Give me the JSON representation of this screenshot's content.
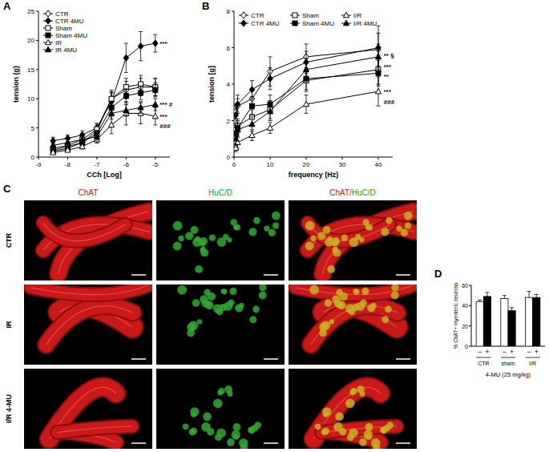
{
  "chart_data": [
    {
      "type": "line",
      "title": "A",
      "x_label": "CCh [Log]",
      "y_label": "tension (g)",
      "x": [
        -8.5,
        -8,
        -7.5,
        -7,
        -6.5,
        -6,
        -5.5,
        -5
      ],
      "xlim": [
        -9,
        -4.5
      ],
      "xticks": [
        -9,
        -8,
        -7,
        -6,
        -5
      ],
      "ylim": [
        0,
        25
      ],
      "yticks": [
        0,
        5,
        10,
        15,
        20,
        25
      ],
      "grid": false,
      "legend": "upper-left",
      "series": [
        {
          "name": "CTR",
          "color": "#000000",
          "marker": "diamond-open",
          "values": [
            1.2,
            1.8,
            2.5,
            4.5,
            10,
            11.5,
            12,
            12
          ],
          "errors": [
            0.3,
            0.4,
            0.5,
            0.8,
            1.5,
            1.5,
            1.5,
            1.5
          ]
        },
        {
          "name": "CTR 4MU",
          "color": "#000000",
          "marker": "diamond",
          "values": [
            2.8,
            3.2,
            3.8,
            5,
            9.5,
            17,
            19,
            19.5
          ],
          "errors": [
            0.6,
            0.6,
            0.7,
            0.8,
            1.5,
            2.5,
            2.5,
            1.5
          ]
        },
        {
          "name": "Sham",
          "color": "#000000",
          "marker": "square-open",
          "values": [
            1.5,
            2,
            3,
            4.8,
            10,
            12,
            12.5,
            12
          ],
          "errors": [
            0.4,
            0.5,
            0.6,
            0.8,
            1.2,
            1.5,
            1.5,
            1.5
          ]
        },
        {
          "name": "Sham 4MU",
          "color": "#000000",
          "marker": "square",
          "values": [
            1,
            1.5,
            2.5,
            4,
            8.5,
            10.5,
            11,
            11.5
          ],
          "errors": [
            0.3,
            0.4,
            0.5,
            0.6,
            1,
            1.2,
            1.2,
            1.2
          ]
        },
        {
          "name": "IR",
          "color": "#000000",
          "marker": "triangle-open",
          "values": [
            0.8,
            1.2,
            1.8,
            3,
            5.5,
            7.5,
            7.5,
            7
          ],
          "errors": [
            0.2,
            0.3,
            0.4,
            0.6,
            1.5,
            2,
            1.8,
            1.5
          ]
        },
        {
          "name": "IR 4MU",
          "color": "#000000",
          "marker": "triangle",
          "values": [
            2,
            2.5,
            3,
            3.5,
            7.5,
            8,
            8.5,
            9
          ],
          "errors": [
            0.4,
            0.5,
            0.5,
            0.6,
            1,
            1,
            1,
            1
          ]
        }
      ],
      "annotations": [
        {
          "text": "***",
          "x": -4.85,
          "y": 19.5
        },
        {
          "text": "*** #",
          "x": -4.85,
          "y": 9
        },
        {
          "text": "***",
          "x": -4.85,
          "y": 7
        },
        {
          "text": "###",
          "x": -4.85,
          "y": 5.3
        }
      ]
    },
    {
      "type": "line",
      "title": "B",
      "x_label": "frequency (Hz)",
      "y_label": "tension [g]",
      "x": [
        0.5,
        1,
        5,
        10,
        20,
        40
      ],
      "xlim": [
        0,
        44
      ],
      "xticks": [
        0,
        10,
        20,
        30,
        40
      ],
      "ylim": [
        0,
        8
      ],
      "yticks": [
        0,
        2,
        4,
        6,
        8
      ],
      "grid": false,
      "legend": "top",
      "series": [
        {
          "name": "CTR",
          "color": "#000000",
          "marker": "diamond-open",
          "values": [
            2.5,
            2.8,
            3.2,
            4.7,
            5.5,
            5.9
          ],
          "errors": [
            0.4,
            0.4,
            0.5,
            0.8,
            0.7,
            0.9
          ]
        },
        {
          "name": "CTR 4MU",
          "color": "#000000",
          "marker": "diamond",
          "values": [
            2.3,
            2.9,
            3.7,
            4.3,
            5.2,
            6.0
          ],
          "errors": [
            0.5,
            0.5,
            0.5,
            0.6,
            0.6,
            1.2
          ]
        },
        {
          "name": "Sham",
          "color": "#000000",
          "marker": "square-open",
          "values": [
            1.5,
            1.7,
            2.2,
            2.6,
            4.2,
            4.8
          ],
          "errors": [
            0.3,
            0.4,
            0.4,
            0.5,
            0.6,
            0.8
          ]
        },
        {
          "name": "Sham 4MU",
          "color": "#000000",
          "marker": "square",
          "values": [
            1.3,
            1.6,
            2.8,
            2.9,
            4.3,
            4.6
          ],
          "errors": [
            0.3,
            0.4,
            0.5,
            0.5,
            0.6,
            0.7
          ]
        },
        {
          "name": "I/R",
          "color": "#000000",
          "marker": "triangle-open",
          "values": [
            0.5,
            0.8,
            1.2,
            1.6,
            2.9,
            3.6
          ],
          "errors": [
            0.2,
            0.3,
            0.3,
            0.3,
            0.5,
            0.8
          ]
        },
        {
          "name": "I/R 4MU",
          "color": "#000000",
          "marker": "triangle",
          "values": [
            1.0,
            1.5,
            1.8,
            2.5,
            4.8,
            5.5
          ],
          "errors": [
            0.3,
            0.4,
            0.4,
            0.5,
            0.6,
            0.7
          ]
        }
      ],
      "annotations": [
        {
          "text": "** §",
          "x": 41.5,
          "y": 5.6
        },
        {
          "text": "***",
          "x": 41.5,
          "y": 4.95
        },
        {
          "text": "**",
          "x": 41.5,
          "y": 4.45
        },
        {
          "text": "***",
          "x": 41.5,
          "y": 3.6
        },
        {
          "text": "###",
          "x": 41.5,
          "y": 3.05
        }
      ]
    },
    {
      "type": "bar",
      "title": "D",
      "x_label": "4-MU (25 mg/kg)",
      "y_label": "% ChAT+ myenteric neurons",
      "categories": [
        "CTR",
        "sham",
        "I/R"
      ],
      "ylim": [
        0,
        60
      ],
      "yticks": [
        0,
        20,
        40,
        60
      ],
      "grid": false,
      "series": [
        {
          "name": "−",
          "color": "#ffffff",
          "values": [
            44,
            47,
            48
          ],
          "errors": [
            1.5,
            3,
            6
          ]
        },
        {
          "name": "+",
          "color": "#000000",
          "values": [
            49,
            35,
            48
          ],
          "errors": [
            4,
            3,
            3
          ]
        }
      ]
    }
  ],
  "panel_c": {
    "title": "C",
    "columns": [
      "ChAT",
      "HuC/D"
    ],
    "merged_parts": [
      "ChAT/",
      "HuC/D"
    ],
    "rows": [
      "CTR",
      "IR",
      "I/R 4-MU"
    ]
  }
}
